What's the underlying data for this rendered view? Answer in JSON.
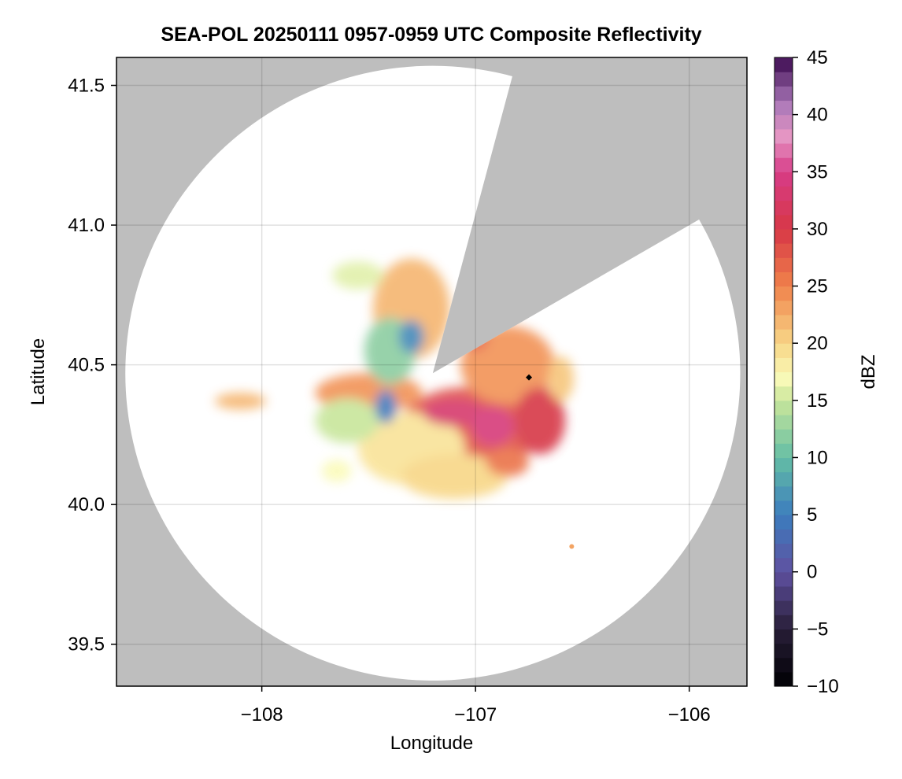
{
  "chart_data": {
    "type": "heatmap",
    "title": "SEA-POL 20250111 0957-0959 UTC Composite Reflectivity",
    "xlabel": "Longitude",
    "ylabel": "Latitude",
    "xlim": [
      -108.68,
      -105.73
    ],
    "ylim": [
      39.35,
      41.6
    ],
    "x_ticks": [
      -108,
      -107,
      -106
    ],
    "x_tick_labels": [
      "−108",
      "−107",
      "−106"
    ],
    "y_ticks": [
      39.5,
      40.0,
      40.5,
      41.0,
      41.5
    ],
    "y_tick_labels": [
      "39.5",
      "40.0",
      "40.5",
      "41.0",
      "41.5"
    ],
    "grid": true,
    "radar_center": {
      "lon": -107.2,
      "lat": 40.47
    },
    "radar_range_deg_lat": 1.1,
    "blocked_sectors_deg_from_north": [
      [
        15,
        60
      ]
    ],
    "no_data_color": "#bebebe",
    "marker": {
      "lon": -106.75,
      "lat": 40.455,
      "color": "#000000"
    },
    "colorbar": {
      "label": "dBZ",
      "min": -10,
      "max": 45,
      "ticks": [
        -10,
        -5,
        0,
        5,
        10,
        15,
        20,
        25,
        30,
        35,
        40,
        45
      ],
      "tick_labels": [
        "−10",
        "−5",
        "0",
        "5",
        "10",
        "15",
        "20",
        "25",
        "30",
        "35",
        "40",
        "45"
      ],
      "levels": 44
    },
    "echoes": [
      {
        "lon": -107.05,
        "lat": 40.25,
        "rlon": 0.32,
        "rlat": 0.17,
        "dbz": 28
      },
      {
        "lon": -106.85,
        "lat": 40.5,
        "rlon": 0.22,
        "rlat": 0.14,
        "dbz": 24
      },
      {
        "lon": -106.7,
        "lat": 40.3,
        "rlon": 0.12,
        "rlat": 0.12,
        "dbz": 30
      },
      {
        "lon": -107.3,
        "lat": 40.7,
        "rlon": 0.18,
        "rlat": 0.18,
        "dbz": 22
      },
      {
        "lon": -107.5,
        "lat": 40.4,
        "rlon": 0.25,
        "rlat": 0.07,
        "dbz": 24
      },
      {
        "lon": -107.3,
        "lat": 40.2,
        "rlon": 0.25,
        "rlat": 0.13,
        "dbz": 19
      },
      {
        "lon": -107.1,
        "lat": 40.1,
        "rlon": 0.25,
        "rlat": 0.08,
        "dbz": 20
      },
      {
        "lon": -107.6,
        "lat": 40.3,
        "rlon": 0.15,
        "rlat": 0.08,
        "dbz": 15
      },
      {
        "lon": -107.4,
        "lat": 40.55,
        "rlon": 0.12,
        "rlat": 0.12,
        "dbz": 12
      },
      {
        "lon": -107.3,
        "lat": 40.6,
        "rlon": 0.06,
        "rlat": 0.06,
        "dbz": 6
      },
      {
        "lon": -107.42,
        "lat": 40.35,
        "rlon": 0.05,
        "rlat": 0.06,
        "dbz": 5
      },
      {
        "lon": -108.1,
        "lat": 40.37,
        "rlon": 0.12,
        "rlat": 0.03,
        "dbz": 22
      },
      {
        "lon": -107.55,
        "lat": 40.82,
        "rlon": 0.12,
        "rlat": 0.05,
        "dbz": 16
      },
      {
        "lon": -107.1,
        "lat": 40.33,
        "rlon": 0.15,
        "rlat": 0.05,
        "dbz": 33
      },
      {
        "lon": -106.92,
        "lat": 40.28,
        "rlon": 0.1,
        "rlat": 0.07,
        "dbz": 34
      },
      {
        "lon": -106.85,
        "lat": 40.15,
        "rlon": 0.1,
        "rlat": 0.05,
        "dbz": 26
      },
      {
        "lon": -106.6,
        "lat": 40.45,
        "rlon": 0.06,
        "rlat": 0.08,
        "dbz": 21
      },
      {
        "lon": -107.0,
        "lat": 40.6,
        "rlon": 0.06,
        "rlat": 0.05,
        "dbz": 27
      },
      {
        "lon": -107.65,
        "lat": 40.12,
        "rlon": 0.07,
        "rlat": 0.04,
        "dbz": 17
      },
      {
        "lon": -106.55,
        "lat": 39.85,
        "rlon": 0.01,
        "rlat": 0.008,
        "dbz": 23
      }
    ]
  }
}
